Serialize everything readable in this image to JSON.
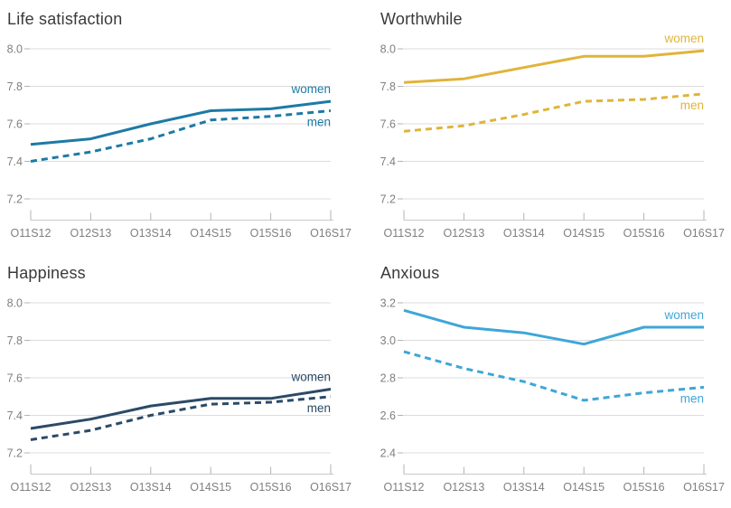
{
  "page": {
    "background": "#ffffff",
    "text_color_title": "#3a3a3a",
    "text_color_ticks": "#7f7f7f",
    "grid_color": "#dcdcdc",
    "tick_mark_color": "#b3b3b3",
    "axis_line_color": "#c9c9c9"
  },
  "chart_data": [
    {
      "type": "line",
      "title": "Life satisfaction",
      "color": "#1d7aa5",
      "grid": true,
      "legend_position": "end-of-line",
      "categories": [
        "O11S12",
        "O12S13",
        "O13S14",
        "O14S15",
        "O15S16",
        "O16S17"
      ],
      "yticks": [
        7.2,
        7.4,
        7.6,
        7.8,
        8.0
      ],
      "ylim": [
        7.1,
        8.08
      ],
      "xlabel": "",
      "ylabel": "",
      "series": [
        {
          "name": "women",
          "dash": false,
          "values": [
            7.49,
            7.52,
            7.6,
            7.67,
            7.68,
            7.72
          ]
        },
        {
          "name": "men",
          "dash": true,
          "values": [
            7.4,
            7.45,
            7.52,
            7.62,
            7.64,
            7.67
          ]
        }
      ]
    },
    {
      "type": "line",
      "title": "Worthwhile",
      "color": "#e0b43b",
      "grid": true,
      "legend_position": "end-of-line",
      "categories": [
        "O11S12",
        "O12S13",
        "O13S14",
        "O14S15",
        "O15S16",
        "O16S17"
      ],
      "yticks": [
        7.2,
        7.4,
        7.6,
        7.8,
        8.0
      ],
      "ylim": [
        7.1,
        8.08
      ],
      "xlabel": "",
      "ylabel": "",
      "series": [
        {
          "name": "women",
          "dash": false,
          "values": [
            7.82,
            7.84,
            7.9,
            7.96,
            7.96,
            7.99
          ]
        },
        {
          "name": "men",
          "dash": true,
          "values": [
            7.56,
            7.59,
            7.65,
            7.72,
            7.73,
            7.76
          ]
        }
      ]
    },
    {
      "type": "line",
      "title": "Happiness",
      "color": "#2b4a67",
      "grid": true,
      "legend_position": "end-of-line",
      "categories": [
        "O11S12",
        "O12S13",
        "O13S14",
        "O14S15",
        "O15S16",
        "O16S17"
      ],
      "yticks": [
        7.2,
        7.4,
        7.6,
        7.8,
        8.0
      ],
      "ylim": [
        7.1,
        8.08
      ],
      "xlabel": "",
      "ylabel": "",
      "series": [
        {
          "name": "women",
          "dash": false,
          "values": [
            7.33,
            7.38,
            7.45,
            7.49,
            7.49,
            7.54
          ]
        },
        {
          "name": "men",
          "dash": true,
          "values": [
            7.27,
            7.32,
            7.4,
            7.46,
            7.47,
            7.5
          ]
        }
      ]
    },
    {
      "type": "line",
      "title": "Anxious",
      "color": "#3fa6d8",
      "grid": true,
      "legend_position": "end-of-line",
      "categories": [
        "O11S12",
        "O12S13",
        "O13S14",
        "O14S15",
        "O15S16",
        "O16S17"
      ],
      "yticks": [
        2.4,
        2.6,
        2.8,
        3.0,
        3.2
      ],
      "ylim": [
        2.3,
        3.28
      ],
      "xlabel": "",
      "ylabel": "",
      "series": [
        {
          "name": "women",
          "dash": false,
          "values": [
            3.16,
            3.07,
            3.04,
            2.98,
            3.07,
            3.07
          ]
        },
        {
          "name": "men",
          "dash": true,
          "values": [
            2.94,
            2.85,
            2.78,
            2.68,
            2.72,
            2.75
          ]
        }
      ]
    }
  ]
}
